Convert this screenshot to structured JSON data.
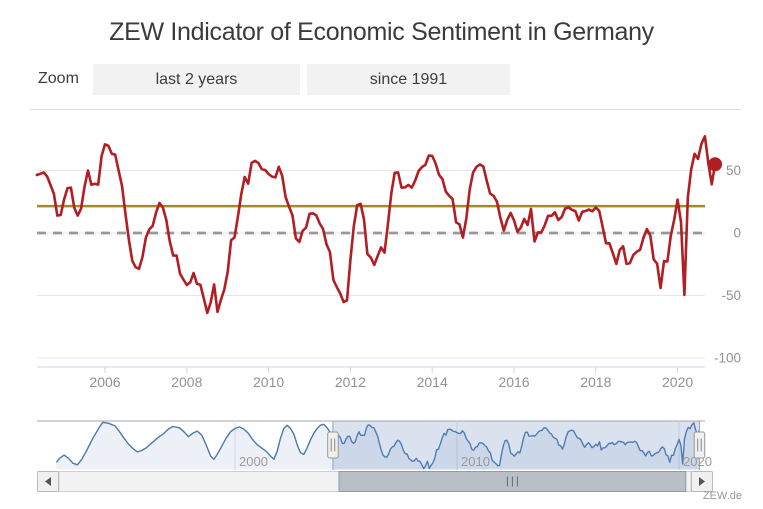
{
  "title": "ZEW Indicator of Economic Sentiment in Germany",
  "toolbar": {
    "zoom_label": "Zoom",
    "buttons": [
      "last 2 years",
      "since 1991"
    ]
  },
  "credits": "ZEW.de",
  "colors": {
    "series_red": "#b11e23",
    "average_gold": "#a1892f",
    "zero_dash_gray": "#999999",
    "grid": "#e6e6e6",
    "axis_line": "#ccd6eb",
    "axis_text": "#95918c",
    "navigator_blue": "#4a79ad",
    "navigator_area": "rgba(74,121,173,0.10)",
    "navigator_mask": "rgba(102,133,194,0.24)",
    "scrollbar_thumb": "#b9bfc7"
  },
  "chart_data": {
    "type": "line",
    "title": "ZEW Indicator of Economic Sentiment in Germany",
    "xlabel": "",
    "ylabel": "",
    "grid": true,
    "legend_position": "none",
    "yAxis": {
      "position": "right",
      "ticks": [
        50,
        0,
        -50,
        -100
      ],
      "range": [
        -107,
        84
      ]
    },
    "xAxis": {
      "ticks": [
        2006,
        2008,
        2010,
        2012,
        2014,
        2016,
        2018,
        2020
      ],
      "range": [
        2004.34,
        2020.97
      ]
    },
    "average_line": {
      "value": 21.5,
      "color": "#a1892f"
    },
    "zero_line": {
      "value": 0,
      "style": "dashed",
      "color": "#999999"
    },
    "series": [
      {
        "name": "ZEW Indicator of Economic Sentiment",
        "color": "#b11e23",
        "start_year": 2004,
        "start_month": 5,
        "frequency": "monthly",
        "values": [
          46.4,
          47.4,
          48.4,
          45.3,
          38.4,
          31.3,
          13.9,
          14.4,
          26.9,
          35.9,
          36.3,
          20.1,
          13.9,
          19.5,
          37.0,
          50.0,
          38.6,
          39.4,
          38.7,
          61.6,
          71.0,
          69.8,
          63.4,
          62.7,
          50.0,
          37.8,
          15.1,
          -5.6,
          -22.2,
          -27.4,
          -28.5,
          -19.0,
          -3.6,
          2.9,
          5.8,
          16.5,
          24.0,
          20.3,
          10.4,
          -6.9,
          -18.1,
          -18.1,
          -32.5,
          -37.2,
          -41.6,
          -39.5,
          -32.0,
          -40.7,
          -41.4,
          -52.4,
          -63.9,
          -55.5,
          -41.1,
          -63.0,
          -53.5,
          -45.2,
          -31.0,
          -5.8,
          -3.5,
          13.0,
          31.1,
          44.8,
          39.5,
          56.1,
          57.7,
          56.0,
          51.1,
          50.4,
          47.2,
          45.1,
          44.5,
          53.0,
          45.8,
          28.7,
          21.2,
          14.0,
          -4.3,
          -7.2,
          1.8,
          4.3,
          15.4,
          15.7,
          14.1,
          7.6,
          3.1,
          -9.0,
          -15.1,
          -37.6,
          -43.3,
          -48.3,
          -55.2,
          -53.8,
          -21.6,
          5.4,
          22.3,
          23.4,
          10.8,
          -16.9,
          -19.6,
          -25.5,
          -18.2,
          -11.5,
          -15.7,
          6.9,
          31.5,
          48.2,
          48.5,
          36.3,
          36.4,
          38.5,
          36.3,
          42.0,
          49.6,
          52.8,
          54.6,
          62.0,
          61.7,
          55.7,
          46.6,
          43.2,
          33.1,
          29.8,
          27.1,
          8.6,
          6.9,
          -3.6,
          11.5,
          34.9,
          48.4,
          53.0,
          54.8,
          53.3,
          41.9,
          31.5,
          29.7,
          25.0,
          12.1,
          1.9,
          10.4,
          16.1,
          10.2,
          1.0,
          4.3,
          11.2,
          6.4,
          19.2,
          -6.8,
          0.5,
          0.5,
          6.2,
          13.8,
          13.8,
          16.6,
          10.4,
          12.8,
          19.5,
          20.6,
          18.6,
          17.5,
          10.0,
          17.0,
          17.6,
          18.7,
          17.4,
          20.4,
          17.8,
          5.1,
          -8.2,
          -8.2,
          -16.1,
          -24.7,
          -13.7,
          -10.6,
          -24.7,
          -24.1,
          -17.5,
          -15.0,
          -13.4,
          -3.6,
          3.1,
          -2.1,
          -21.1,
          -24.5,
          -44.1,
          -22.5,
          -22.8,
          -2.1,
          10.7,
          26.7,
          8.7,
          -49.5,
          28.2,
          51.0,
          63.4,
          59.3,
          71.5,
          77.4,
          56.1,
          39.0,
          55.0
        ]
      }
    ],
    "last_point": {
      "x": 2020.917,
      "y": 55.0,
      "marker": "filled-circle"
    },
    "navigator": {
      "xAxis": {
        "ticks": [
          2000,
          2010,
          2020
        ],
        "range": [
          1991.1,
          2021.2
        ]
      },
      "yRange": [
        -65,
        80
      ],
      "selection": [
        2004.41,
        2020.92
      ],
      "series_pre": [
        [
          1991.95,
          -45
        ],
        [
          1992.1,
          -32
        ],
        [
          1992.3,
          -22
        ],
        [
          1992.5,
          -32
        ],
        [
          1992.7,
          -47
        ],
        [
          1992.9,
          -52
        ],
        [
          1993.1,
          -35
        ],
        [
          1993.3,
          -10
        ],
        [
          1993.6,
          30
        ],
        [
          1993.9,
          65
        ],
        [
          1994.05,
          79
        ],
        [
          1994.3,
          76
        ],
        [
          1994.6,
          68
        ],
        [
          1994.8,
          50
        ],
        [
          1995.0,
          30
        ],
        [
          1995.2,
          12
        ],
        [
          1995.4,
          -2
        ],
        [
          1995.6,
          -12
        ],
        [
          1995.8,
          -8
        ],
        [
          1996.0,
          0
        ],
        [
          1996.2,
          12
        ],
        [
          1996.5,
          30
        ],
        [
          1996.8,
          45
        ],
        [
          1997.0,
          58
        ],
        [
          1997.2,
          66
        ],
        [
          1997.5,
          62
        ],
        [
          1997.7,
          50
        ],
        [
          1997.9,
          35
        ],
        [
          1998.1,
          45
        ],
        [
          1998.3,
          52
        ],
        [
          1998.5,
          40
        ],
        [
          1998.7,
          10
        ],
        [
          1998.9,
          -25
        ],
        [
          1999.05,
          -35
        ],
        [
          1999.2,
          -20
        ],
        [
          1999.4,
          5
        ],
        [
          1999.6,
          30
        ],
        [
          1999.8,
          50
        ],
        [
          2000.0,
          60
        ],
        [
          2000.2,
          65
        ],
        [
          2000.4,
          58
        ],
        [
          2000.6,
          45
        ],
        [
          2000.8,
          25
        ],
        [
          2001.0,
          10
        ],
        [
          2001.2,
          0
        ],
        [
          2001.4,
          -10
        ],
        [
          2001.6,
          -25
        ],
        [
          2001.75,
          -35
        ],
        [
          2001.9,
          -10
        ],
        [
          2002.05,
          30
        ],
        [
          2002.2,
          60
        ],
        [
          2002.35,
          70
        ],
        [
          2002.5,
          60
        ],
        [
          2002.65,
          43
        ],
        [
          2002.8,
          10
        ],
        [
          2002.95,
          -15
        ],
        [
          2003.1,
          -20
        ],
        [
          2003.25,
          0
        ],
        [
          2003.4,
          25
        ],
        [
          2003.55,
          45
        ],
        [
          2003.7,
          60
        ],
        [
          2003.85,
          70
        ],
        [
          2004.0,
          73
        ],
        [
          2004.15,
          62
        ],
        [
          2004.25,
          52
        ]
      ]
    }
  }
}
